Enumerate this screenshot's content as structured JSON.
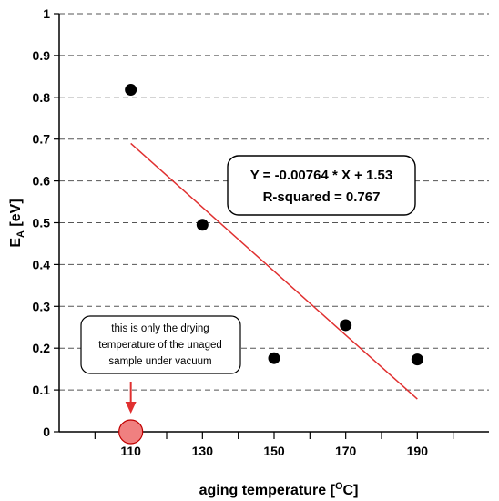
{
  "chart_data": {
    "type": "scatter",
    "title": "",
    "xlabel": "aging temperature [",
    "xlabel_sup": "O",
    "xlabel_end": "C]",
    "ylabel": "E",
    "ylabel_sub": "A",
    "ylabel_end": " [eV]",
    "xlim": [
      90,
      210
    ],
    "ylim": [
      0,
      1
    ],
    "x_ticks": [
      110,
      130,
      150,
      170,
      190
    ],
    "x_tick_labels": [
      "110",
      "130",
      "150",
      "170",
      "190"
    ],
    "y_ticks": [
      0,
      0.1,
      0.2,
      0.3,
      0.4,
      0.5,
      0.6,
      0.7,
      0.8,
      0.9,
      1
    ],
    "y_tick_labels": [
      "0",
      "0.1",
      "0.2",
      "0.3",
      "0.4",
      "0.5",
      "0.6",
      "0.7",
      "0.8",
      "0.9",
      "1"
    ],
    "grid": "horizontal dashed",
    "series": [
      {
        "points": [
          {
            "x": 110,
            "y": 0.818
          },
          {
            "x": 130,
            "y": 0.495
          },
          {
            "x": 150,
            "y": 0.176
          },
          {
            "x": 170,
            "y": 0.255
          },
          {
            "x": 190,
            "y": 0.173
          }
        ],
        "color": "#000000"
      }
    ],
    "highlight_point": {
      "x": 110,
      "y": 0,
      "color": "#f08080",
      "stroke": "#c00000"
    },
    "fit_line": {
      "slope": -0.00764,
      "intercept": 1.53,
      "x_range": [
        110,
        190
      ],
      "color": "#e03030"
    },
    "equation_box": {
      "line1": "Y = -0.00764 * X + 1.53",
      "line2": "R-squared = 0.767"
    },
    "annotation": {
      "lines": [
        "this is only the drying",
        "temperature of the unaged",
        "sample under vacuum"
      ],
      "arrow_color": "#e03030"
    }
  }
}
